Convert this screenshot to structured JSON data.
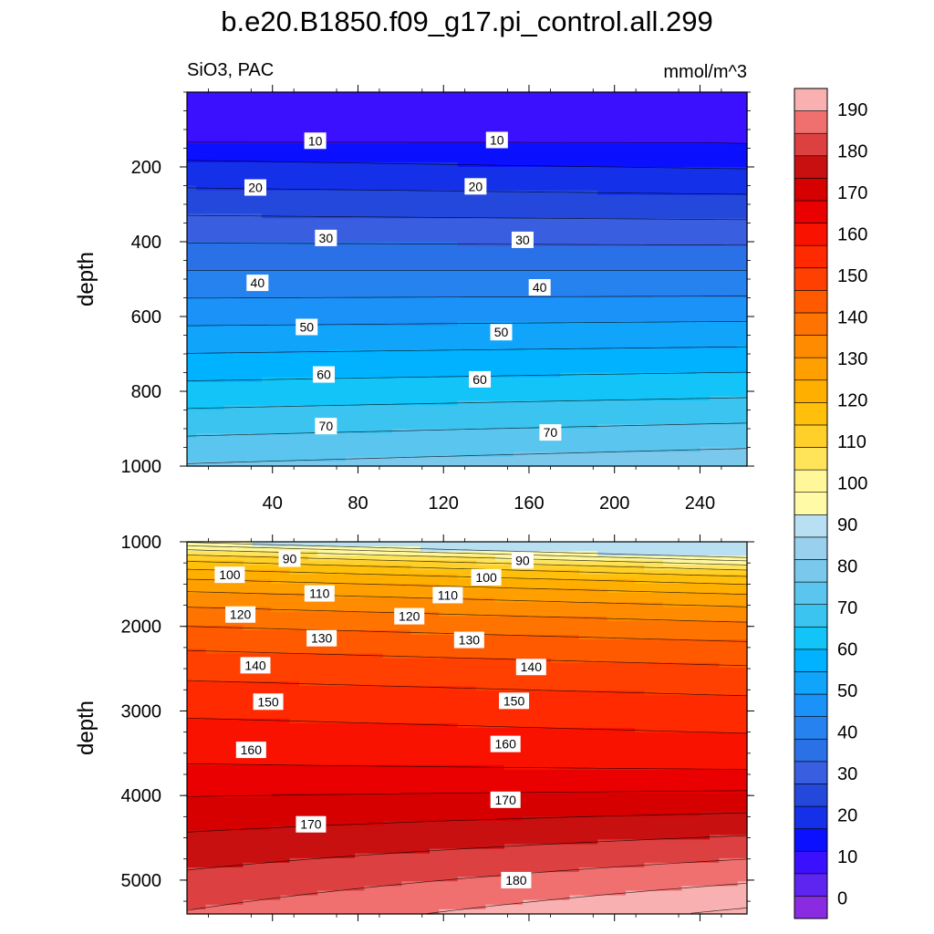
{
  "title": "b.e20.B1850.f09_g17.pi_control.all.299",
  "subtitle_left": "SiO3, PAC",
  "units": "mmol/m^3",
  "colors": {
    "levels": [
      "#8a2be2",
      "#5f25f0",
      "#3a10ff",
      "#0b10ff",
      "#1430e8",
      "#2448dc",
      "#3a5ee0",
      "#2a70e6",
      "#2582ee",
      "#1a92f8",
      "#10a4fb",
      "#00b2ff",
      "#12c4f8",
      "#3cc4f0",
      "#5ac6ef",
      "#7ac8ec",
      "#99d0ee",
      "#b8e0f2",
      "#fffaa6",
      "#fff79a",
      "#ffe45a",
      "#ffd02a",
      "#ffbf0a",
      "#ffaf00",
      "#ff9f00",
      "#ff8c00",
      "#ff7400",
      "#ff5a00",
      "#ff4000",
      "#ff2a00",
      "#fa1200",
      "#ea0000",
      "#d60000",
      "#c81010",
      "#dc4040",
      "#f07070",
      "#f8b0b0"
    ]
  },
  "chart_data": [
    {
      "type": "contour",
      "panel": "upper",
      "ylabel": "depth",
      "xlim": [
        0,
        262
      ],
      "ylim": [
        1000,
        0
      ],
      "x_ticks": [
        40,
        80,
        120,
        160,
        200,
        240
      ],
      "y_ticks": [
        200,
        400,
        600,
        800,
        1000
      ],
      "contour_interval": 5,
      "labeled_levels": [
        {
          "text": "10",
          "x": 60,
          "y": 130
        },
        {
          "text": "10",
          "x": 145,
          "y": 128
        },
        {
          "text": "20",
          "x": 32,
          "y": 255
        },
        {
          "text": "20",
          "x": 135,
          "y": 252
        },
        {
          "text": "30",
          "x": 65,
          "y": 390
        },
        {
          "text": "30",
          "x": 157,
          "y": 395
        },
        {
          "text": "40",
          "x": 33,
          "y": 510
        },
        {
          "text": "40",
          "x": 165,
          "y": 522
        },
        {
          "text": "50",
          "x": 56,
          "y": 628
        },
        {
          "text": "50",
          "x": 147,
          "y": 642
        },
        {
          "text": "60",
          "x": 64,
          "y": 755
        },
        {
          "text": "60",
          "x": 137,
          "y": 768
        },
        {
          "text": "70",
          "x": 65,
          "y": 893
        },
        {
          "text": "70",
          "x": 170,
          "y": 910
        }
      ]
    },
    {
      "type": "contour",
      "panel": "lower",
      "ylabel": "depth",
      "xlim": [
        0,
        262
      ],
      "ylim": [
        5400,
        1000
      ],
      "y_ticks": [
        1000,
        2000,
        3000,
        4000,
        5000
      ],
      "contour_interval": 5,
      "labeled_levels": [
        {
          "text": "90",
          "x": 48,
          "y": 1200
        },
        {
          "text": "90",
          "x": 157,
          "y": 1220
        },
        {
          "text": "100",
          "x": 20,
          "y": 1390
        },
        {
          "text": "100",
          "x": 140,
          "y": 1420
        },
        {
          "text": "110",
          "x": 62,
          "y": 1610
        },
        {
          "text": "110",
          "x": 122,
          "y": 1630
        },
        {
          "text": "120",
          "x": 25,
          "y": 1860
        },
        {
          "text": "120",
          "x": 104,
          "y": 1880
        },
        {
          "text": "130",
          "x": 63,
          "y": 2140
        },
        {
          "text": "130",
          "x": 132,
          "y": 2160
        },
        {
          "text": "140",
          "x": 32,
          "y": 2460
        },
        {
          "text": "140",
          "x": 161,
          "y": 2480
        },
        {
          "text": "150",
          "x": 38,
          "y": 2890
        },
        {
          "text": "150",
          "x": 153,
          "y": 2880
        },
        {
          "text": "160",
          "x": 30,
          "y": 3460
        },
        {
          "text": "160",
          "x": 149,
          "y": 3390
        },
        {
          "text": "170",
          "x": 58,
          "y": 4340
        },
        {
          "text": "170",
          "x": 149,
          "y": 4050
        },
        {
          "text": "180",
          "x": 154,
          "y": 5000
        }
      ]
    }
  ],
  "colorbar": {
    "min": -5,
    "max": 195,
    "step": 5,
    "tick_labels": [
      "0",
      "10",
      "20",
      "30",
      "40",
      "50",
      "60",
      "70",
      "80",
      "90",
      "100",
      "110",
      "120",
      "130",
      "140",
      "150",
      "160",
      "170",
      "180",
      "190"
    ]
  }
}
